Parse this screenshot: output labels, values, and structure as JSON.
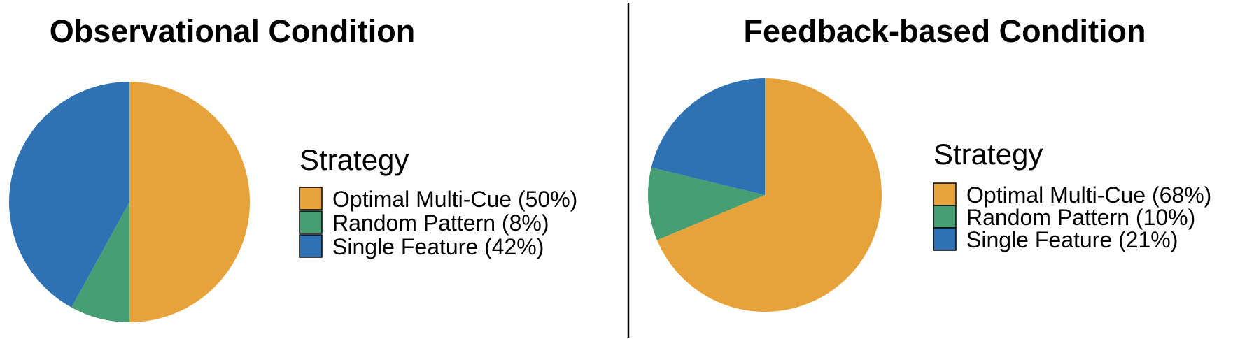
{
  "chart_data": [
    {
      "type": "pie",
      "title": "Observational Condition",
      "legend_title": "Strategy",
      "legend_position": "right",
      "slices": [
        {
          "label": "Optimal Multi-Cue (50%)",
          "value": 50,
          "color": "#E8A23A"
        },
        {
          "label": "Random Pattern (8%)",
          "value": 8,
          "color": "#479E72"
        },
        {
          "label": "Single Feature (42%)",
          "value": 42,
          "color": "#2F72B4"
        }
      ]
    },
    {
      "type": "pie",
      "title": "Feedback-based Condition",
      "legend_title": "Strategy",
      "legend_position": "right",
      "slices": [
        {
          "label": "Optimal Multi-Cue (68%)",
          "value": 68,
          "color": "#E8A23A"
        },
        {
          "label": "Random Pattern (10%)",
          "value": 10,
          "color": "#479E72"
        },
        {
          "label": "Single Feature (21%)",
          "value": 21,
          "color": "#2F72B4"
        }
      ]
    }
  ]
}
